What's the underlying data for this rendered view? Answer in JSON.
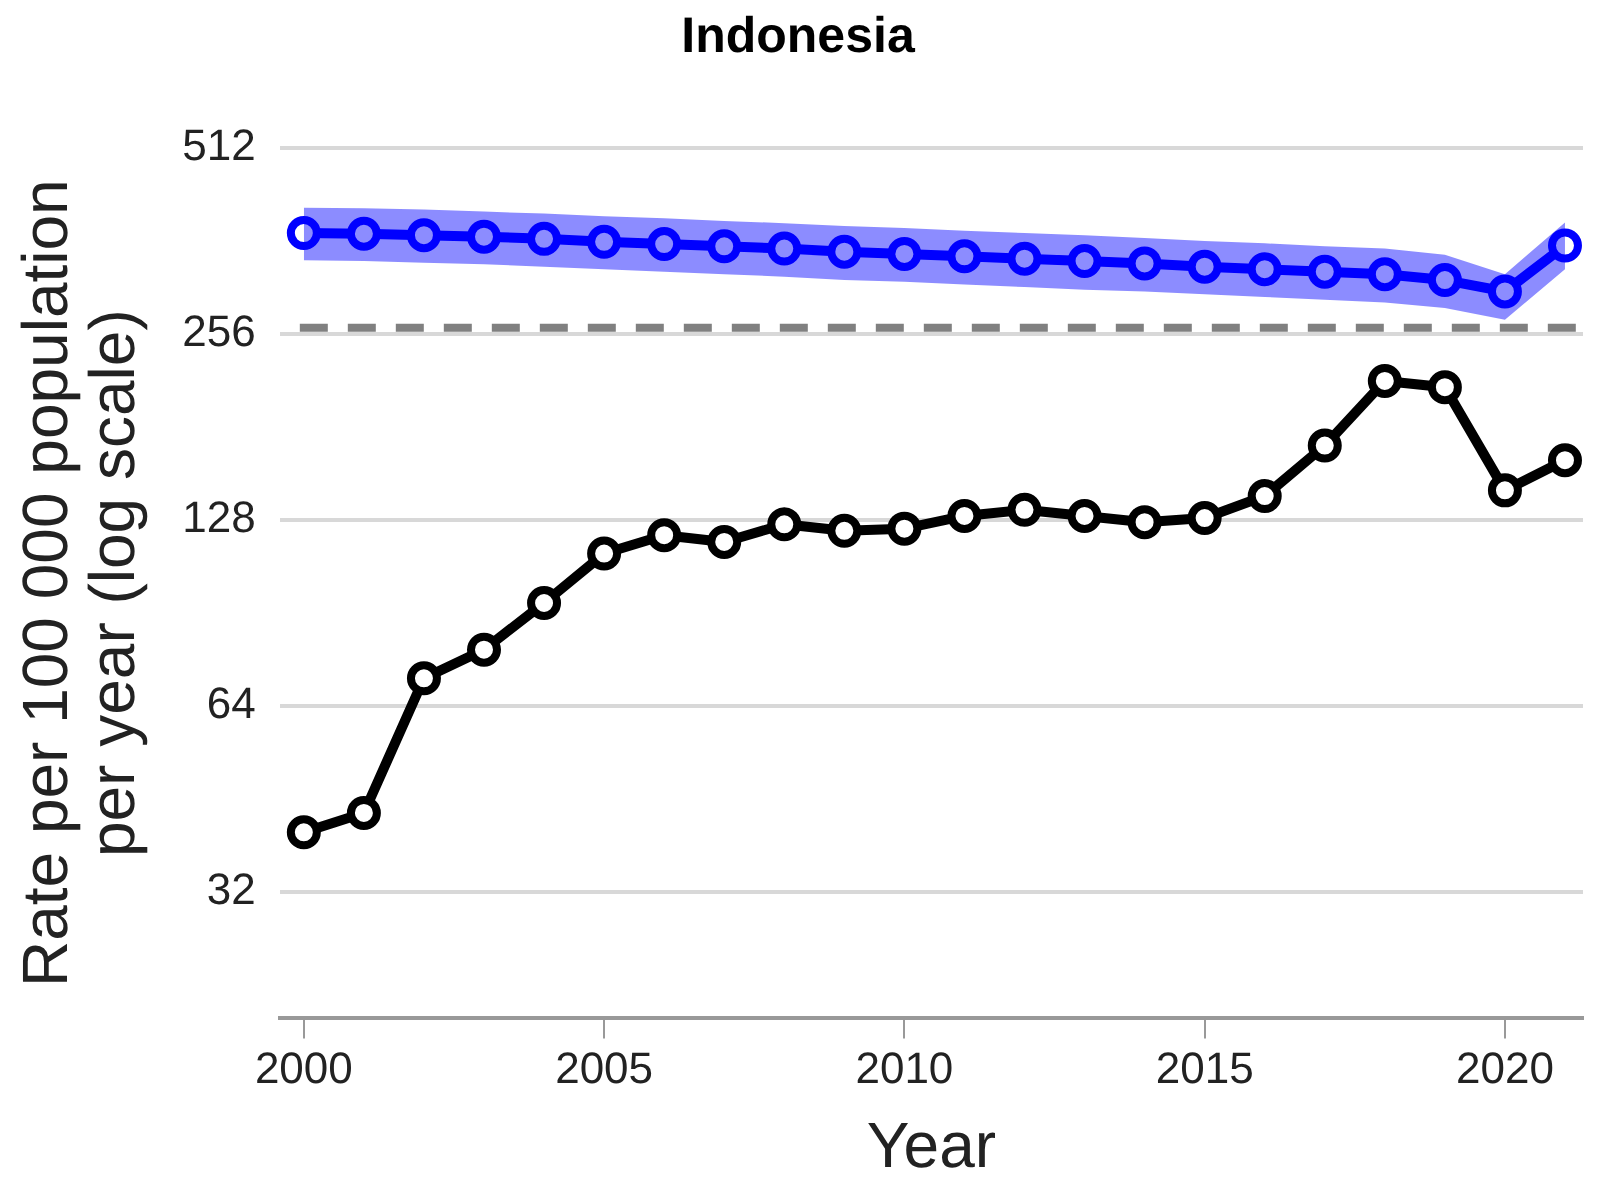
{
  "chart_data": {
    "type": "line",
    "title": "Indonesia",
    "xlabel": "Year",
    "ylabel": "Rate per 100 000 population per year (log scale)",
    "x": [
      2000,
      2001,
      2002,
      2003,
      2004,
      2005,
      2006,
      2007,
      2008,
      2009,
      2010,
      2011,
      2012,
      2013,
      2014,
      2015,
      2016,
      2017,
      2018,
      2019,
      2020,
      2021
    ],
    "series": [
      {
        "color": "#0000ff",
        "values": [
          373,
          372,
          370,
          368,
          365,
          361,
          358,
          355,
          352,
          348,
          345,
          342,
          339,
          336,
          333,
          329,
          326,
          323,
          320,
          313,
          300,
          356
        ],
        "upper": [
          410,
          409,
          407,
          404,
          401,
          397,
          394,
          390,
          387,
          383,
          380,
          376,
          373,
          370,
          366,
          362,
          359,
          355,
          352,
          344,
          320,
          388
        ],
        "lower": [
          337,
          336,
          334,
          332,
          329,
          326,
          323,
          320,
          317,
          313,
          311,
          308,
          305,
          302,
          300,
          297,
          294,
          291,
          288,
          282,
          270,
          326
        ]
      },
      {
        "color": "#000000",
        "values": [
          40,
          43,
          71,
          79,
          94,
          113,
          121,
          118,
          126,
          123,
          124,
          130,
          133,
          130,
          127,
          129,
          140,
          169,
          215,
          210,
          143,
          160
        ]
      }
    ],
    "ref_lines": [
      {
        "axis": "y",
        "value": 262,
        "color": "#808080",
        "line_style": "dashed"
      }
    ],
    "log": "y",
    "xlim": [
      1999.6,
      2021.3
    ],
    "xticks": [
      2000,
      2005,
      2010,
      2015,
      2020
    ],
    "ylim": [
      20,
      512
    ],
    "yticks": [
      32,
      64,
      128,
      256,
      512
    ],
    "grid": "y",
    "legend": false,
    "marker": "circle",
    "line_style": "solid"
  }
}
